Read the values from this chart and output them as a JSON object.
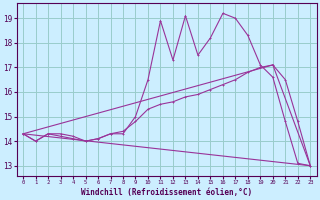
{
  "xlabel": "Windchill (Refroidissement éolien,°C)",
  "bg_color": "#cceeff",
  "line_color": "#993399",
  "grid_color": "#99cccc",
  "xlim": [
    -0.5,
    23.5
  ],
  "ylim": [
    12.6,
    19.6
  ],
  "yticks": [
    13,
    14,
    15,
    16,
    17,
    18,
    19
  ],
  "xticks": [
    0,
    1,
    2,
    3,
    4,
    5,
    6,
    7,
    8,
    9,
    10,
    11,
    12,
    13,
    14,
    15,
    16,
    17,
    18,
    19,
    20,
    21,
    22,
    23
  ],
  "series1_x": [
    0,
    1,
    2,
    3,
    4,
    5,
    6,
    7,
    8,
    9,
    10,
    11,
    12,
    13,
    14,
    15,
    16,
    17,
    18,
    19,
    20,
    21,
    22,
    23
  ],
  "series1_y": [
    14.3,
    14.0,
    14.3,
    14.3,
    14.2,
    14.0,
    14.1,
    14.3,
    14.3,
    15.0,
    16.5,
    18.9,
    17.3,
    19.1,
    17.5,
    18.2,
    19.2,
    19.0,
    18.3,
    17.1,
    16.6,
    14.8,
    13.1,
    13.0
  ],
  "series2_x": [
    0,
    1,
    2,
    3,
    4,
    5,
    6,
    7,
    8,
    9,
    10,
    11,
    12,
    13,
    14,
    15,
    16,
    17,
    18,
    19,
    20,
    21,
    22,
    23
  ],
  "series2_y": [
    14.3,
    14.0,
    14.3,
    14.2,
    14.1,
    14.0,
    14.1,
    14.3,
    14.4,
    14.8,
    15.3,
    15.5,
    15.6,
    15.8,
    15.9,
    16.1,
    16.3,
    16.5,
    16.8,
    17.0,
    17.1,
    16.5,
    14.8,
    13.0
  ],
  "series3_x": [
    0,
    20
  ],
  "series3_y": [
    14.3,
    17.1
  ],
  "series4_x": [
    0,
    23
  ],
  "series4_y": [
    14.3,
    13.0
  ],
  "series5_x": [
    20,
    23
  ],
  "series5_y": [
    17.1,
    13.0
  ]
}
